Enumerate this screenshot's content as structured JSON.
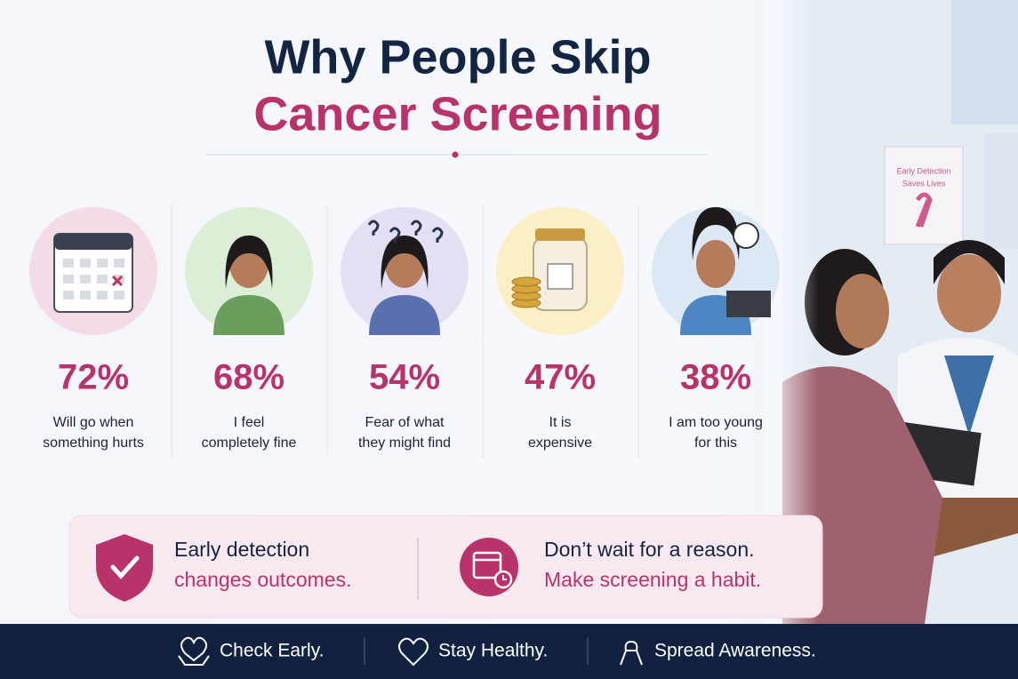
{
  "header": {
    "title_line1": "Why People Skip",
    "title_line2": "Cancer Screening"
  },
  "stats": [
    {
      "percent": "72%",
      "lines": [
        "Will go when",
        "something hurts"
      ]
    },
    {
      "percent": "68%",
      "lines": [
        "I feel",
        "completely fine"
      ]
    },
    {
      "percent": "54%",
      "lines": [
        "Fear of what",
        "they might find"
      ]
    },
    {
      "percent": "47%",
      "lines": [
        "It is",
        "expensive"
      ]
    },
    {
      "percent": "38%",
      "lines": [
        "I am too young",
        "for this"
      ]
    }
  ],
  "callouts": [
    {
      "line1": "Early detection",
      "line2": "changes outcomes."
    },
    {
      "line1": "Don’t wait for a reason.",
      "line2": "Make screening a habit."
    }
  ],
  "poster": {
    "line1": "Early Detection",
    "line2": "Saves Lives"
  },
  "footer": [
    "Check Early.",
    "Stay Healthy.",
    "Spread Awareness."
  ]
}
